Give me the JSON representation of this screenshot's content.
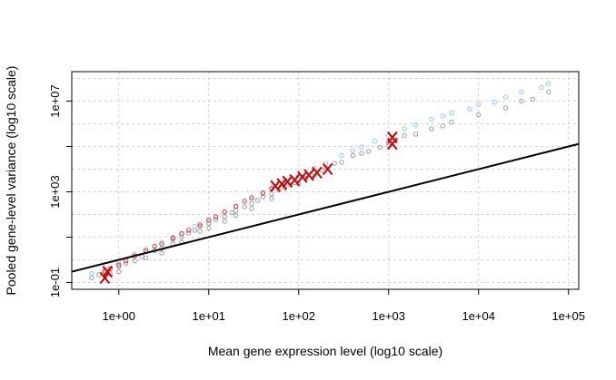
{
  "chart_data": {
    "type": "scatter",
    "title": "",
    "xlabel": "Mean gene expression level (log10 scale)",
    "ylabel": "Pooled gene-level variance (log10 scale)",
    "x_scale": "log10",
    "y_scale": "log10",
    "xlim": [
      0.3,
      130000
    ],
    "ylim": [
      0.05,
      200000000
    ],
    "x_ticks": [
      1,
      10,
      100,
      1000,
      10000,
      100000
    ],
    "x_tick_labels": [
      "1e+00",
      "1e+01",
      "1e+02",
      "1e+03",
      "1e+04",
      "1e+05"
    ],
    "y_ticks": [
      0.1,
      1000,
      10000000
    ],
    "y_tick_labels": [
      "1e-01",
      "1e+03",
      "1e+07"
    ],
    "grid": true,
    "legend": "none",
    "colors": {
      "gray": "#9e9e9e",
      "light_blue": "#87cefa",
      "red_dense": "#f03030",
      "x_marker": "#cc0000",
      "reference_line": "#000000"
    },
    "reference_line": {
      "description": "Poisson line (variance = mean)",
      "points": [
        [
          0.3,
          0.3
        ],
        [
          130000,
          130000
        ]
      ]
    },
    "series": [
      {
        "marker": "open-circle",
        "color": "gray",
        "description": "genes (dense cloud)",
        "points": [
          [
            0.5,
            0.16
          ],
          [
            0.6,
            0.22
          ],
          [
            0.7,
            0.35
          ],
          [
            0.8,
            0.25
          ],
          [
            1,
            0.5
          ],
          [
            1,
            0.3
          ],
          [
            1.2,
            0.7
          ],
          [
            1.5,
            0.9
          ],
          [
            1.8,
            1.4
          ],
          [
            2,
            1.2
          ],
          [
            2.5,
            2.5
          ],
          [
            3,
            3.2
          ],
          [
            3,
            2
          ],
          [
            4,
            5
          ],
          [
            4,
            8
          ],
          [
            5,
            10
          ],
          [
            5,
            6
          ],
          [
            6,
            15
          ],
          [
            7,
            20
          ],
          [
            8,
            18
          ],
          [
            8,
            30
          ],
          [
            10,
            40
          ],
          [
            10,
            25
          ],
          [
            12,
            60
          ],
          [
            15,
            80
          ],
          [
            15,
            50
          ],
          [
            18,
            120
          ],
          [
            20,
            150
          ],
          [
            20,
            90
          ],
          [
            25,
            220
          ],
          [
            30,
            300
          ],
          [
            30,
            180
          ],
          [
            35,
            420
          ],
          [
            40,
            600
          ],
          [
            50,
            800
          ],
          [
            50,
            500
          ],
          [
            60,
            1200
          ],
          [
            70,
            1500
          ],
          [
            80,
            2000
          ],
          [
            90,
            2500
          ],
          [
            100,
            3500
          ],
          [
            100,
            2200
          ],
          [
            120,
            4000
          ],
          [
            150,
            5000
          ],
          [
            150,
            7000
          ],
          [
            180,
            9000
          ],
          [
            200,
            12000
          ],
          [
            250,
            18000
          ],
          [
            300,
            20000
          ],
          [
            400,
            40000
          ],
          [
            500,
            50000
          ],
          [
            600,
            60000
          ],
          [
            800,
            90000
          ],
          [
            1000,
            150000
          ],
          [
            1000,
            110000
          ],
          [
            1200,
            200000
          ],
          [
            1500,
            300000
          ],
          [
            2000,
            350000
          ],
          [
            3000,
            600000
          ],
          [
            4000,
            800000
          ],
          [
            5000,
            1200000
          ],
          [
            10000,
            2500000
          ],
          [
            20000,
            5000000
          ],
          [
            30000,
            10000000
          ],
          [
            40000,
            12000000
          ],
          [
            60000,
            25000000
          ]
        ]
      },
      {
        "marker": "open-circle",
        "color": "light_blue",
        "description": "genes (upper band, overdispersed)",
        "points": [
          [
            0.5,
            0.25
          ],
          [
            1,
            0.8
          ],
          [
            1.5,
            1.8
          ],
          [
            2,
            3
          ],
          [
            3,
            6
          ],
          [
            4,
            10
          ],
          [
            5,
            15
          ],
          [
            7,
            30
          ],
          [
            10,
            60
          ],
          [
            15,
            130
          ],
          [
            20,
            220
          ],
          [
            30,
            450
          ],
          [
            40,
            800
          ],
          [
            50,
            1300
          ],
          [
            70,
            2500
          ],
          [
            100,
            5000
          ],
          [
            150,
            11000
          ],
          [
            200,
            18000
          ],
          [
            300,
            40000
          ],
          [
            400,
            65000
          ],
          [
            500,
            95000
          ],
          [
            700,
            170000
          ],
          [
            1000,
            300000
          ],
          [
            1500,
            600000
          ],
          [
            2000,
            900000
          ],
          [
            3000,
            1600000
          ],
          [
            4000,
            2200000
          ],
          [
            5000,
            3000000
          ],
          [
            8000,
            4500000
          ],
          [
            10000,
            7000000
          ],
          [
            15000,
            9000000
          ],
          [
            20000,
            15000000
          ],
          [
            30000,
            25000000
          ],
          [
            50000,
            40000000
          ],
          [
            60000,
            60000000
          ]
        ]
      },
      {
        "marker": "open-circle",
        "color": "red_dense",
        "description": "genes (red highlighted group)",
        "points": [
          [
            0.7,
            0.3
          ],
          [
            0.8,
            0.4
          ],
          [
            1,
            0.6
          ],
          [
            1.2,
            0.9
          ],
          [
            1.5,
            1.5
          ],
          [
            2,
            2.5
          ],
          [
            2.5,
            4
          ],
          [
            3,
            5
          ],
          [
            4,
            9
          ],
          [
            5,
            14
          ],
          [
            6,
            20
          ],
          [
            8,
            35
          ],
          [
            10,
            55
          ],
          [
            12,
            80
          ],
          [
            15,
            130
          ],
          [
            20,
            230
          ],
          [
            25,
            380
          ],
          [
            30,
            550
          ],
          [
            40,
            900
          ],
          [
            50,
            1400
          ]
        ]
      },
      {
        "marker": "x",
        "color": "x_marker",
        "description": "highlighted genes (X markers)",
        "points": [
          [
            0.7,
            0.16
          ],
          [
            0.75,
            0.3
          ],
          [
            55,
            1800
          ],
          [
            65,
            2200
          ],
          [
            75,
            2800
          ],
          [
            90,
            3300
          ],
          [
            110,
            4500
          ],
          [
            130,
            5500
          ],
          [
            160,
            7000
          ],
          [
            210,
            10000
          ],
          [
            1100,
            130000
          ],
          [
            1100,
            250000
          ]
        ]
      }
    ]
  }
}
